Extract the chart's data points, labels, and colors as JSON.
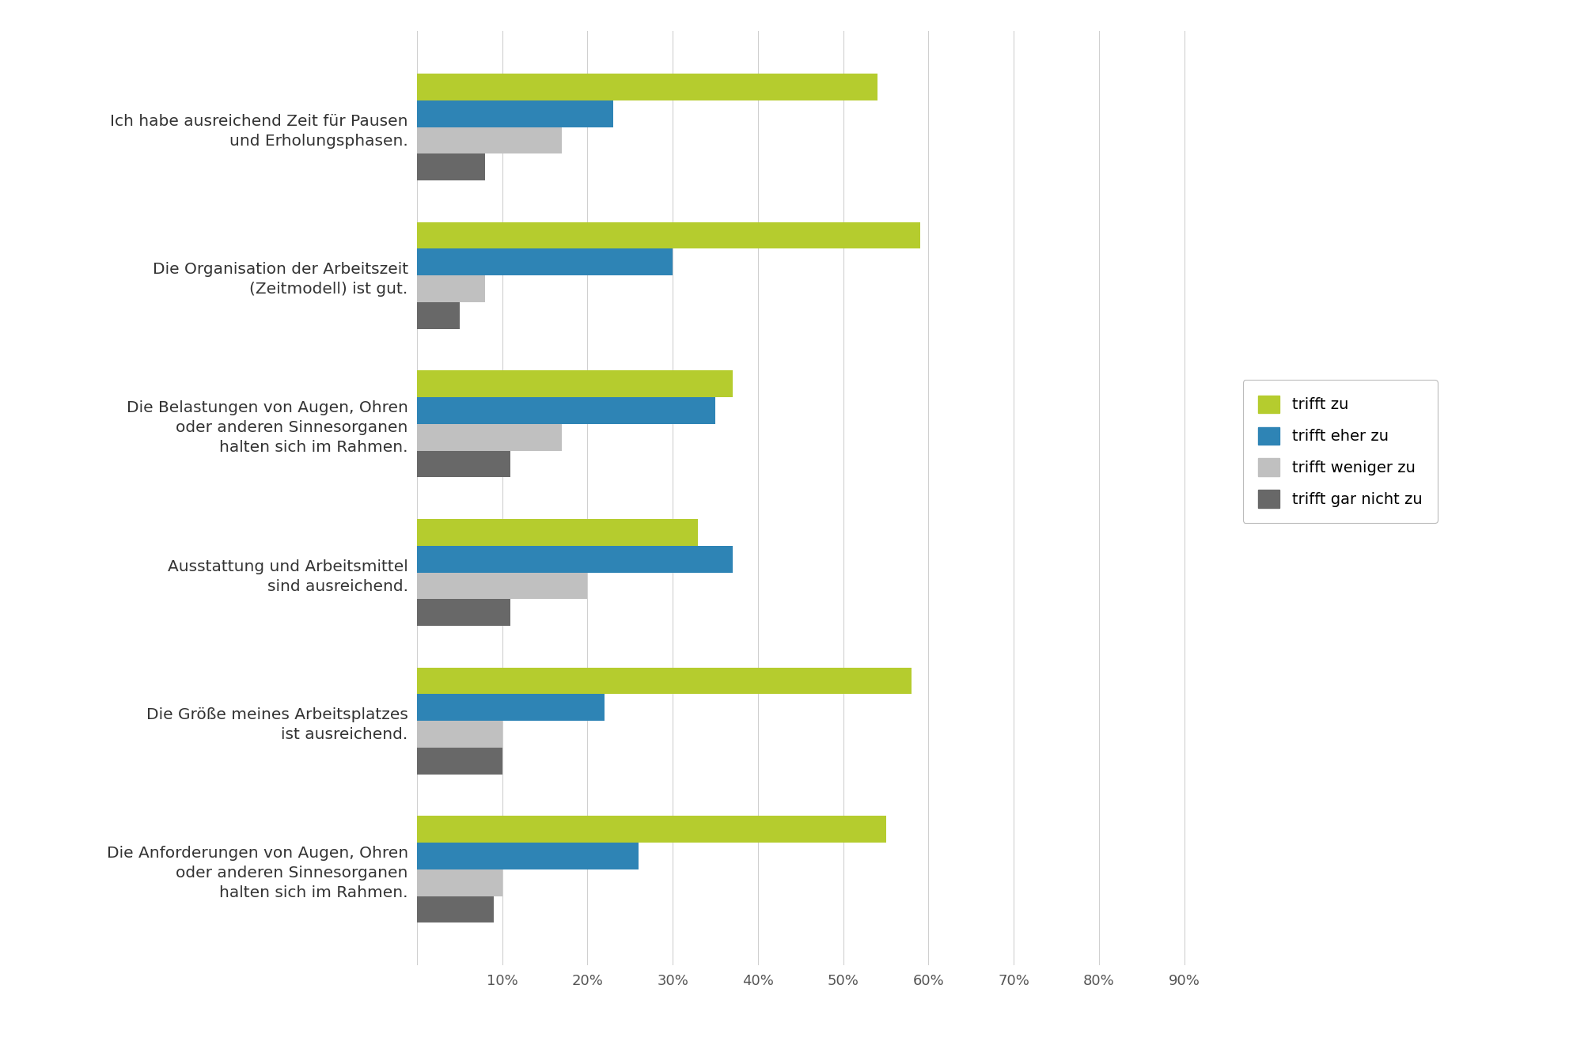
{
  "categories": [
    "Ich habe ausreichend Zeit für Pausen\nund Erholungsphasen.",
    "Die Organisation der Arbeitszeit\n(Zeitmodell) ist gut.",
    "Die Belastungen von Augen, Ohren\noder anderen Sinnesorganen\nhalten sich im Rahmen.",
    "Ausstattung und Arbeitsmittel\nsind ausreichend.",
    "Die Größe meines Arbeitsplatzes\nist ausreichend.",
    "Die Anforderungen von Augen, Ohren\noder anderen Sinnesorganen\nhalten sich im Rahmen."
  ],
  "series": {
    "trifft zu": [
      54,
      59,
      37,
      33,
      58,
      55
    ],
    "trifft eher zu": [
      23,
      30,
      35,
      37,
      22,
      26
    ],
    "trifft weniger zu": [
      17,
      8,
      17,
      20,
      10,
      10
    ],
    "trifft gar nicht zu": [
      8,
      5,
      11,
      11,
      10,
      9
    ]
  },
  "colors": {
    "trifft zu": "#b5cc2e",
    "trifft eher zu": "#2e84b5",
    "trifft weniger zu": "#c0c0c0",
    "trifft gar nicht zu": "#686868"
  },
  "legend_labels": [
    "trifft zu",
    "trifft eher zu",
    "trifft weniger zu",
    "trifft gar nicht zu"
  ],
  "xticks": [
    0,
    10,
    20,
    30,
    40,
    50,
    60,
    70,
    80,
    90
  ],
  "xlim_max": 95,
  "background_color": "#ffffff",
  "grid_color": "#d0d0d0",
  "label_fontsize": 14.5,
  "tick_fontsize": 13,
  "legend_fontsize": 14
}
